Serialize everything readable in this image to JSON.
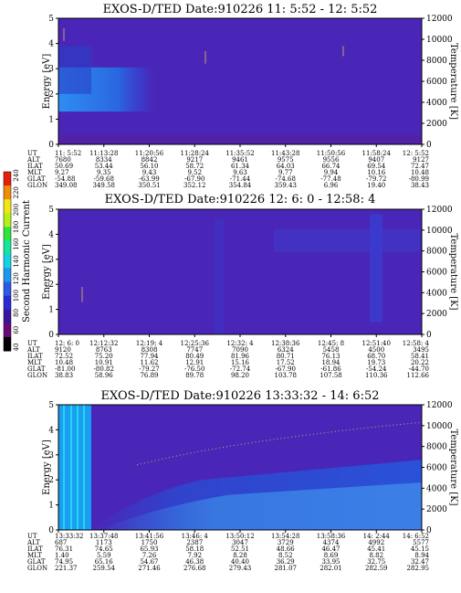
{
  "chart_data": [
    {
      "type": "heatmap",
      "title": "EXOS-D/TED   Date:910226  11: 5:52 - 12: 5:52",
      "ylabel": "Energy [eV]",
      "y2label": "Temperature [K]",
      "ylim": [
        0,
        5
      ],
      "y_ticks": [
        "0",
        "1",
        "2",
        "3",
        "4",
        "5"
      ],
      "y2lim": [
        0,
        12000
      ],
      "y2_ticks": [
        "0",
        "2000",
        "4000",
        "6000",
        "8000",
        "10000",
        "12000"
      ],
      "ephemeris": {
        "row_labels": [
          "UT",
          "ALT",
          "ILAT",
          "MLT",
          "GLAT",
          "GLON"
        ],
        "columns": [
          [
            "11: 5:52",
            "7680",
            "50.69",
            "9.27",
            "-54.88",
            "349.08"
          ],
          [
            "11:13:28",
            "8334",
            "53.44",
            "9.35",
            "-59.68",
            "349.58"
          ],
          [
            "11:20:56",
            "8842",
            "56.10",
            "9.43",
            "-63.99",
            "350.51"
          ],
          [
            "11:28:24",
            "9217",
            "58.72",
            "9.52",
            "-67.90",
            "352.12"
          ],
          [
            "11:35:52",
            "9461",
            "61.34",
            "9.63",
            "-71.44",
            "354.84"
          ],
          [
            "11:43:28",
            "9575",
            "64.03",
            "9.77",
            "-74.68",
            "359.43"
          ],
          [
            "11:50:56",
            "9556",
            "66.74",
            "9.94",
            "-77.48",
            "6.96"
          ],
          [
            "11:58:24",
            "9407",
            "69.54",
            "10.16",
            "-79.72",
            "19.40"
          ],
          [
            "12: 5:52",
            "9127",
            "72.47",
            "10.48",
            "-80.99",
            "38.43"
          ]
        ]
      }
    },
    {
      "type": "heatmap",
      "title": "EXOS-D/TED   Date:910226  12: 6: 0 - 12:58: 4",
      "ylabel": "Energy [eV]",
      "y2label": "Temperature [K]",
      "ylim": [
        0,
        5
      ],
      "y_ticks": [
        "0",
        "1",
        "2",
        "3",
        "4",
        "5"
      ],
      "y2lim": [
        0,
        12000
      ],
      "y2_ticks": [
        "0",
        "2000",
        "4000",
        "6000",
        "8000",
        "10000",
        "12000"
      ],
      "ephemeris": {
        "row_labels": [
          "UT",
          "ALT",
          "ILAT",
          "MLT",
          "GLAT",
          "GLON"
        ],
        "columns": [
          [
            "12: 6: 0",
            "9120",
            "72.52",
            "10.48",
            "-81.00",
            "38.83"
          ],
          [
            "12:12:32",
            "8763",
            "75.20",
            "10.91",
            "-80.82",
            "58.96"
          ],
          [
            "12:19: 4",
            "8308",
            "77.94",
            "11.62",
            "-79.27",
            "76.89"
          ],
          [
            "12:25:36",
            "7747",
            "80.49",
            "12.91",
            "-76.50",
            "89.78"
          ],
          [
            "12:32: 4",
            "7090",
            "81.96",
            "15.16",
            "-72.74",
            "98.20"
          ],
          [
            "12:38:36",
            "6324",
            "80.71",
            "17.52",
            "-67.90",
            "103.78"
          ],
          [
            "12:45: 8",
            "5458",
            "76.13",
            "18.94",
            "-61.86",
            "107.58"
          ],
          [
            "12:51:40",
            "4500",
            "68.70",
            "19.73",
            "-54.24",
            "110.36"
          ],
          [
            "12:58: 4",
            "3495",
            "58.41",
            "20.22",
            "-44.70",
            "112.66"
          ]
        ]
      }
    },
    {
      "type": "heatmap",
      "title": "EXOS-D/TED   Date:910226  13:33:32 - 14: 6:52",
      "ylabel": "Energy [eV]",
      "y2label": "Temperature [K]",
      "ylim": [
        0,
        5
      ],
      "y_ticks": [
        "0",
        "1",
        "2",
        "3",
        "4",
        "5"
      ],
      "y2lim": [
        0,
        12000
      ],
      "y2_ticks": [
        "0",
        "2000",
        "4000",
        "6000",
        "8000",
        "10000",
        "12000"
      ],
      "ephemeris": {
        "row_labels": [
          "UT",
          "ALT",
          "ILAT",
          "MLT",
          "GLAT",
          "GLON"
        ],
        "columns": [
          [
            "13:33:32",
            "687",
            "76.31",
            "1.40",
            "74.95",
            "221.37"
          ],
          [
            "13:37:48",
            "1173",
            "74.65",
            "5.59",
            "65.16",
            "259.54"
          ],
          [
            "13:41:56",
            "1750",
            "65.93",
            "7.26",
            "54.67",
            "271.46"
          ],
          [
            "13:46: 4",
            "2387",
            "58.18",
            "7.92",
            "46.38",
            "276.68"
          ],
          [
            "13:50:12",
            "3047",
            "52.51",
            "8.28",
            "40.40",
            "279.43"
          ],
          [
            "13:54:28",
            "3729",
            "48.66",
            "8.52",
            "36.29",
            "281.07"
          ],
          [
            "13:58:36",
            "4374",
            "46.47",
            "8.69",
            "33.95",
            "282.01"
          ],
          [
            "14: 2:44",
            "4992",
            "45.41",
            "8.82",
            "32.75",
            "282.59"
          ],
          [
            "14: 6:52",
            "5577",
            "45.15",
            "8.94",
            "32.47",
            "282.95"
          ]
        ]
      }
    }
  ],
  "colorbar": {
    "label": "Second Harmonic Current",
    "ticks": [
      "40",
      "60",
      "80",
      "100",
      "120",
      "140",
      "160",
      "180",
      "200",
      "220",
      "240"
    ],
    "colors": [
      "#000000",
      "#6a0a78",
      "#3a14a0",
      "#2a2ad2",
      "#2a5ae6",
      "#1e96f0",
      "#14d2e6",
      "#14e6a0",
      "#2ae63c",
      "#b4f014",
      "#f0e614",
      "#f08c0a",
      "#e61e0a"
    ]
  }
}
